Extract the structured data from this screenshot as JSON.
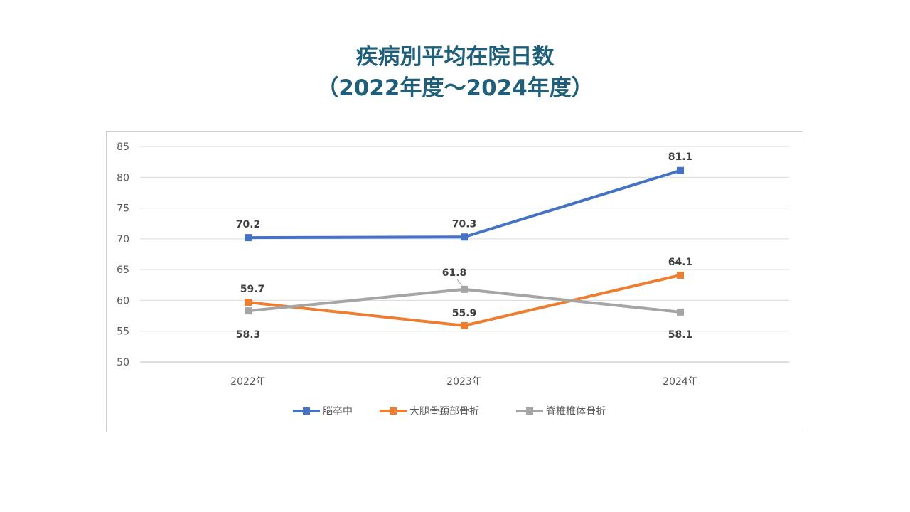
{
  "title": {
    "line1": "疾病別平均在院日数",
    "line2": "（2022年度～2024年度）"
  },
  "chart_data": {
    "type": "line",
    "title": "疾病別平均在院日数（2022年度～2024年度）",
    "categories": [
      "2022年",
      "2023年",
      "2024年"
    ],
    "ylim": [
      50,
      85
    ],
    "yticks": [
      50,
      55,
      60,
      65,
      70,
      75,
      80,
      85
    ],
    "grid": true,
    "legend_position": "bottom",
    "series": [
      {
        "name": "脳卒中",
        "color": "#4472c4",
        "values": [
          70.2,
          70.3,
          81.1
        ],
        "labels": [
          "70.2",
          "70.3",
          "81.1"
        ]
      },
      {
        "name": "大腿骨頚部骨折",
        "color": "#ed7d31",
        "values": [
          59.7,
          55.9,
          64.1
        ],
        "labels": [
          "59.7",
          "55.9",
          "64.1"
        ]
      },
      {
        "name": "脊椎椎体骨折",
        "color": "#a5a5a5",
        "values": [
          58.3,
          61.8,
          58.1
        ],
        "labels": [
          "58.3",
          "61.8",
          "58.1"
        ]
      }
    ]
  }
}
